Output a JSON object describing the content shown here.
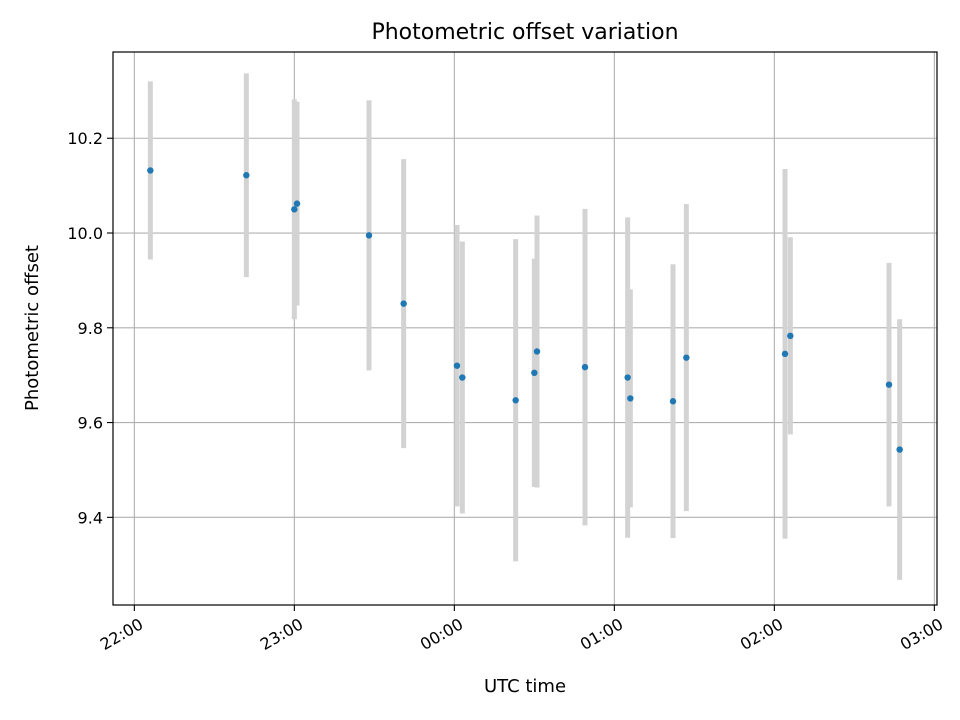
{
  "chart_data": {
    "type": "scatter",
    "title": "Photometric offset variation",
    "xlabel": "UTC time",
    "ylabel": "Photometric offset",
    "x_ticks": [
      "22:00",
      "23:00",
      "00:00",
      "01:00",
      "02:00",
      "03:00"
    ],
    "y_ticks": [
      9.4,
      9.6,
      9.8,
      10.0,
      10.2
    ],
    "xlim": [
      "21:52",
      "03:01"
    ],
    "ylim": [
      9.215,
      10.382
    ],
    "grid": true,
    "colors": {
      "point": "#1f77b4",
      "errorbar": "#d3d3d3",
      "grid": "#b0b0b0"
    },
    "points": [
      {
        "time": "22:06",
        "y": 10.132,
        "err": 0.188
      },
      {
        "time": "22:42",
        "y": 10.122,
        "err": 0.215
      },
      {
        "time": "23:00",
        "y": 10.05,
        "err": 0.232
      },
      {
        "time": "23:01",
        "y": 10.062,
        "err": 0.215
      },
      {
        "time": "23:28",
        "y": 9.995,
        "err": 0.285
      },
      {
        "time": "23:41",
        "y": 9.851,
        "err": 0.305
      },
      {
        "time": "00:01",
        "y": 9.72,
        "err": 0.297
      },
      {
        "time": "00:03",
        "y": 9.695,
        "err": 0.287
      },
      {
        "time": "00:23",
        "y": 9.647,
        "err": 0.34
      },
      {
        "time": "00:30",
        "y": 9.705,
        "err": 0.241
      },
      {
        "time": "00:31",
        "y": 9.75,
        "err": 0.287
      },
      {
        "time": "00:49",
        "y": 9.717,
        "err": 0.334
      },
      {
        "time": "01:05",
        "y": 9.695,
        "err": 0.338
      },
      {
        "time": "01:06",
        "y": 9.651,
        "err": 0.23
      },
      {
        "time": "01:22",
        "y": 9.645,
        "err": 0.289
      },
      {
        "time": "01:27",
        "y": 9.737,
        "err": 0.324
      },
      {
        "time": "02:04",
        "y": 9.745,
        "err": 0.39
      },
      {
        "time": "02:06",
        "y": 9.783,
        "err": 0.208
      },
      {
        "time": "02:43",
        "y": 9.68,
        "err": 0.257
      },
      {
        "time": "02:47",
        "y": 9.543,
        "err": 0.275
      }
    ]
  }
}
